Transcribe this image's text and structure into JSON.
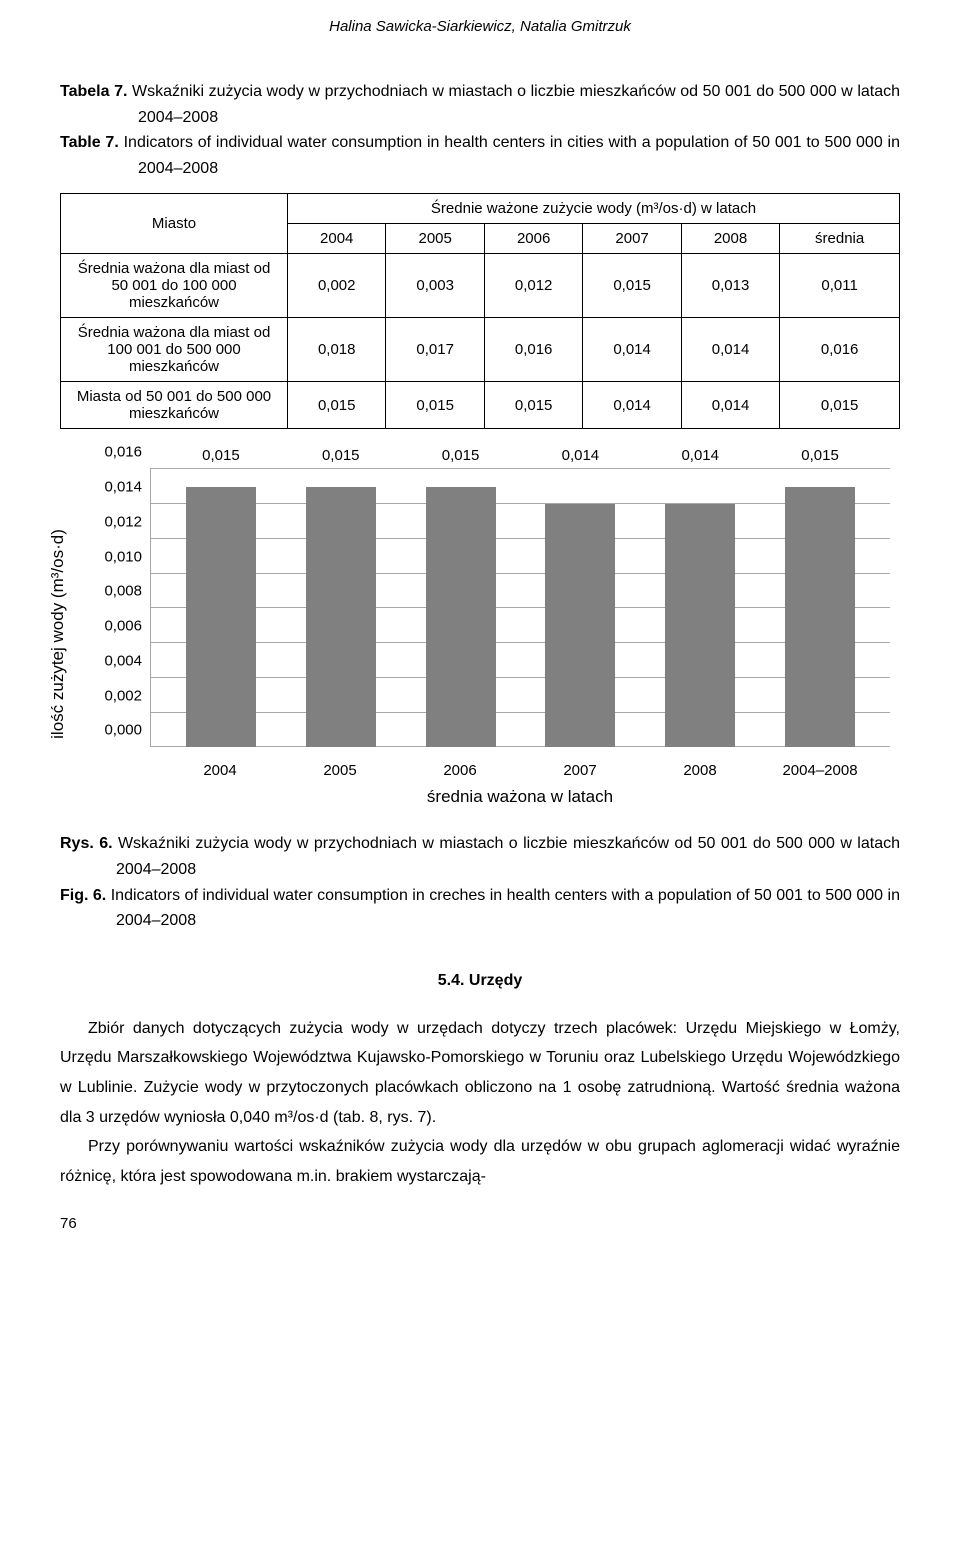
{
  "header": "Halina Sawicka-Siarkiewicz, Natalia Gmitrzuk",
  "table_caption": {
    "label1": "Tabela 7.",
    "text1": "Wskaźniki zużycia wody w przychodniach w miastach o liczbie mieszkańców od 50 001 do 500 000 w latach 2004–2008",
    "label2": "Table 7.",
    "text2": "Indicators of individual water consumption in health centers in cities with a population of 50 001 to 500 000 in 2004–2008"
  },
  "table": {
    "corner": "Miasto",
    "super_header": "Średnie ważone zużycie wody (m³/os·d) w latach",
    "cols": [
      "2004",
      "2005",
      "2006",
      "2007",
      "2008",
      "średnia"
    ],
    "rows": [
      {
        "label": "Średnia ważona dla miast od 50 001 do 100 000 mieszkańców",
        "cells": [
          "0,002",
          "0,003",
          "0,012",
          "0,015",
          "0,013",
          "0,011"
        ]
      },
      {
        "label": "Średnia ważona dla miast od 100 001 do 500 000 mieszkańców",
        "cells": [
          "0,018",
          "0,017",
          "0,016",
          "0,014",
          "0,014",
          "0,016"
        ]
      },
      {
        "label": "Miasta od 50 001 do 500 000 mieszkańców",
        "cells": [
          "0,015",
          "0,015",
          "0,015",
          "0,014",
          "0,014",
          "0,015"
        ]
      }
    ]
  },
  "chart": {
    "type": "bar",
    "ylabel": "ilość zużytej wody (m³/os·d)",
    "xlabel": "średnia ważona w latach",
    "categories": [
      "2004",
      "2005",
      "2006",
      "2007",
      "2008",
      "2004–2008"
    ],
    "values": [
      0.015,
      0.015,
      0.015,
      0.014,
      0.014,
      0.015
    ],
    "value_labels": [
      "0,015",
      "0,015",
      "0,015",
      "0,014",
      "0,014",
      "0,015"
    ],
    "ymax": 0.016,
    "ytick_step": 0.002,
    "yticks": [
      "0,000",
      "0,002",
      "0,004",
      "0,006",
      "0,008",
      "0,010",
      "0,012",
      "0,014",
      "0,016"
    ],
    "bar_color": "#808080",
    "grid_color": "#a8a8a8",
    "background": "#ffffff"
  },
  "fig_caption": {
    "label1": "Rys. 6.",
    "text1": "Wskaźniki zużycia wody w przychodniach w miastach o liczbie mieszkańców od 50 001 do 500 000 w latach 2004–2008",
    "label2": "Fig. 6.",
    "text2": "Indicators of individual water consumption in creches in health centers with a population of 50 001 to 500 000 in 2004–2008"
  },
  "section": {
    "title": "5.4. Urzędy",
    "p1": "Zbiór danych dotyczących zużycia wody w urzędach dotyczy trzech placówek: Urzędu Miejskiego w Łomży, Urzędu Marszałkowskiego Województwa Kujawsko-Pomorskiego w Toruniu oraz Lubelskiego Urzędu Wojewódzkiego w Lublinie. Zużycie wody w przytoczonych placówkach obliczono na 1 osobę zatrudnioną. Wartość średnia ważona dla 3 urzędów wyniosła 0,040 m³/os·d (tab. 8, rys. 7).",
    "p2": "Przy porównywaniu wartości wskaźników zużycia wody dla urzędów w obu grupach aglomeracji widać wyraźnie różnicę, która jest spowodowana m.in. brakiem wystarczają-"
  },
  "page_number": "76"
}
